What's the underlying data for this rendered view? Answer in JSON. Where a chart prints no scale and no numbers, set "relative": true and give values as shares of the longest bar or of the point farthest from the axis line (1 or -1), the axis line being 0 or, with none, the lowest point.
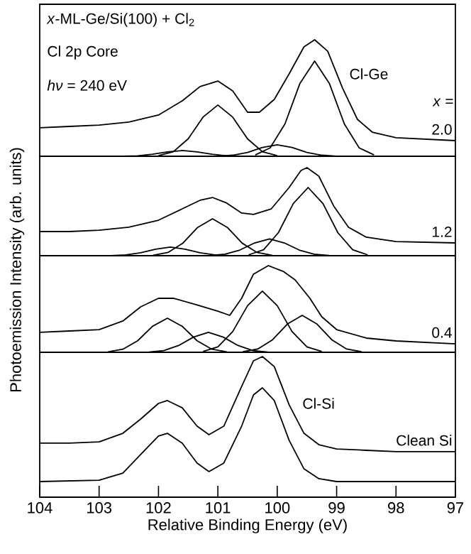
{
  "chart_data": [
    {
      "type": "line",
      "relative": true,
      "title": "*x*-ML-Ge/Si(100) + Cl$_{2}$",
      "subtitle": "Cl 2p Core",
      "ylabel": "Photoemission Intensity (arb. units)",
      "annotations": [
        "*hν* = 240 eV",
        "Cl-Ge",
        "*x* ="
      ],
      "xlim": [
        104,
        97
      ],
      "tick_labels": false,
      "series": [
        {
          "name": "2.0",
          "color": "#000000",
          "x": [
            104,
            103.5,
            103,
            102.5,
            102,
            101.6,
            101.3,
            101,
            100.75,
            100.5,
            100.3,
            100.05,
            99.8,
            99.55,
            99.37,
            99.15,
            98.9,
            98.65,
            98.4,
            98,
            97
          ],
          "values": [
            0.244,
            0.256,
            0.268,
            0.293,
            0.354,
            0.476,
            0.598,
            0.646,
            0.561,
            0.378,
            0.378,
            0.488,
            0.707,
            0.939,
            1,
            0.902,
            0.585,
            0.317,
            0.207,
            0.159,
            0.134
          ]
        },
        {
          "color": "#000000",
          "x": [
            100.6,
            100.85,
            101.1,
            101.35,
            101.6,
            101.85,
            102.1,
            102.35,
            102.6
          ],
          "values": [
            0.001,
            0.004,
            0.017,
            0.037,
            0.049,
            0.037,
            0.017,
            0.004,
            0.001
          ]
        },
        {
          "color": "#000000",
          "x": [
            100,
            100.25,
            100.5,
            100.75,
            101,
            101.25,
            101.5,
            101.75,
            102
          ],
          "values": [
            0.006,
            0.039,
            0.149,
            0.336,
            0.44,
            0.336,
            0.149,
            0.039,
            0.006
          ]
        },
        {
          "color": "#000000",
          "x": [
            99,
            99.25,
            99.5,
            99.75,
            100,
            100.25,
            100.5,
            100.75,
            101
          ],
          "values": [
            0.001,
            0.009,
            0.033,
            0.075,
            0.098,
            0.075,
            0.033,
            0.009,
            0.001
          ]
        },
        {
          "color": "#000000",
          "x": [
            98.37,
            98.62,
            98.87,
            99.12,
            99.37,
            99.62,
            99.87,
            100.12,
            100.37
          ],
          "values": [
            0.011,
            0.072,
            0.277,
            0.623,
            0.817,
            0.623,
            0.277,
            0.072,
            0.011
          ]
        }
      ]
    },
    {
      "type": "line",
      "relative": true,
      "xlim": [
        104,
        97
      ],
      "tick_labels": false,
      "series": [
        {
          "name": "1.2",
          "color": "#000000",
          "x": [
            104,
            103.5,
            103,
            102.5,
            102,
            101.6,
            101.3,
            101.09,
            100.85,
            100.6,
            100.4,
            100.1,
            99.8,
            99.6,
            99.5,
            99.3,
            99.05,
            98.8,
            98.5,
            98,
            97
          ],
          "values": [
            0.274,
            0.274,
            0.29,
            0.323,
            0.403,
            0.532,
            0.629,
            0.661,
            0.597,
            0.484,
            0.468,
            0.532,
            0.774,
            0.968,
            1,
            0.903,
            0.565,
            0.323,
            0.21,
            0.161,
            0.145
          ]
        },
        {
          "color": "#000000",
          "x": [
            100.8,
            101.05,
            101.3,
            101.55,
            101.8,
            102.05,
            102.3,
            102.55,
            102.8
          ],
          "values": [
            0.001,
            0.009,
            0.033,
            0.074,
            0.097,
            0.074,
            0.033,
            0.009,
            0.001
          ]
        },
        {
          "color": "#000000",
          "x": [
            100.09,
            100.34,
            100.59,
            100.84,
            101.09,
            101.34,
            101.59,
            101.84,
            102.09
          ],
          "values": [
            0.005,
            0.037,
            0.142,
            0.321,
            0.42,
            0.321,
            0.142,
            0.037,
            0.005
          ]
        },
        {
          "color": "#000000",
          "x": [
            99.13,
            99.38,
            99.63,
            99.88,
            100.13,
            100.38,
            100.63,
            100.88,
            101.13
          ],
          "values": [
            0.002,
            0.017,
            0.064,
            0.145,
            0.19,
            0.145,
            0.064,
            0.017,
            0.002
          ]
        },
        {
          "color": "#000000",
          "x": [
            98.48,
            98.73,
            98.98,
            99.23,
            99.48,
            99.73,
            99.98,
            100.23,
            100.48
          ],
          "values": [
            0.01,
            0.068,
            0.262,
            0.591,
            0.774,
            0.591,
            0.262,
            0.068,
            0.01
          ]
        }
      ]
    },
    {
      "type": "line",
      "relative": true,
      "xlim": [
        104,
        97
      ],
      "tick_labels": false,
      "series": [
        {
          "name": "0.4",
          "color": "#000000",
          "x": [
            104,
            103.5,
            103,
            102.6,
            102.3,
            102,
            101.75,
            101.4,
            101,
            100.8,
            100.6,
            100.4,
            100.15,
            99.9,
            99.7,
            99.45,
            99.25,
            99,
            98.5,
            98,
            97
          ],
          "values": [
            0.23,
            0.246,
            0.262,
            0.361,
            0.525,
            0.623,
            0.623,
            0.557,
            0.475,
            0.426,
            0.623,
            0.902,
            1,
            0.934,
            0.836,
            0.623,
            0.41,
            0.262,
            0.164,
            0.131,
            0.098
          ]
        },
        {
          "color": "#000000",
          "x": [
            100.85,
            101.1,
            101.35,
            101.6,
            101.85,
            102.1,
            102.35,
            102.6,
            102.85
          ],
          "values": [
            0.005,
            0.035,
            0.133,
            0.3,
            0.393,
            0.3,
            0.133,
            0.035,
            0.005
          ]
        },
        {
          "color": "#000000",
          "x": [
            100.16,
            100.41,
            100.66,
            100.91,
            101.16,
            101.41,
            101.66,
            101.91,
            102.16
          ],
          "values": [
            0.003,
            0.02,
            0.078,
            0.175,
            0.23,
            0.175,
            0.078,
            0.02,
            0.003
          ]
        },
        {
          "color": "#000000",
          "x": [
            99.25,
            99.5,
            99.75,
            100,
            100.25,
            100.5,
            100.75,
            101,
            101.25
          ],
          "values": [
            0.009,
            0.062,
            0.239,
            0.538,
            0.705,
            0.538,
            0.239,
            0.062,
            0.009
          ]
        },
        {
          "color": "#000000",
          "x": [
            98.58,
            98.83,
            99.08,
            99.33,
            99.58,
            99.83,
            100.08,
            100.33,
            100.58
          ],
          "values": [
            0.006,
            0.037,
            0.144,
            0.325,
            0.426,
            0.325,
            0.144,
            0.037,
            0.006
          ]
        }
      ]
    },
    {
      "type": "line",
      "relative": true,
      "xlabel": "Relative Binding Energy (eV)",
      "annotations": [
        "Cl-Si"
      ],
      "xlim": [
        104,
        97
      ],
      "xticks": [
        104,
        103,
        102,
        101,
        100,
        99,
        98,
        97
      ],
      "tick_labels": "x",
      "series": [
        {
          "name": "Clean Si",
          "color": "#000000",
          "x": [
            104,
            103.5,
            103,
            102.6,
            102.3,
            102,
            101.85,
            101.6,
            101.35,
            101.15,
            100.9,
            100.6,
            100.4,
            100.25,
            100.05,
            99.8,
            99.55,
            99.3,
            99,
            98.5,
            98,
            97
          ],
          "values": [
            0.307,
            0.307,
            0.318,
            0.386,
            0.5,
            0.625,
            0.648,
            0.59,
            0.443,
            0.375,
            0.443,
            0.761,
            0.966,
            1,
            0.92,
            0.614,
            0.386,
            0.295,
            0.261,
            0.25,
            0.239,
            0.239
          ]
        },
        {
          "color": "#000000",
          "x": [
            104,
            103,
            102.6,
            102.3,
            102,
            101.85,
            101.6,
            101.35,
            101.15,
            100.9,
            100.6,
            100.4,
            100.25,
            100.05,
            99.8,
            99.55,
            99.3,
            99,
            97
          ],
          "values": [
            0,
            0.011,
            0.068,
            0.216,
            0.364,
            0.386,
            0.307,
            0.148,
            0.08,
            0.148,
            0.443,
            0.693,
            0.75,
            0.648,
            0.33,
            0.102,
            0.023,
            0,
            0
          ]
        }
      ]
    }
  ]
}
